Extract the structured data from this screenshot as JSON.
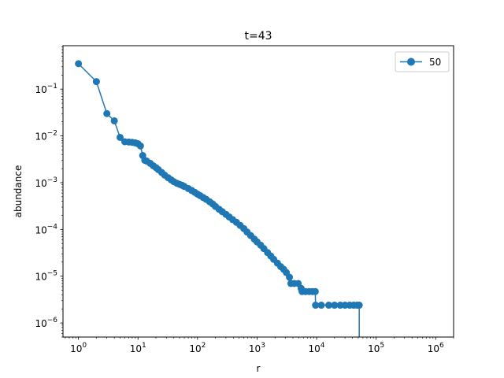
{
  "chart_data": {
    "type": "line",
    "title": "t=43",
    "xlabel": "r",
    "ylabel": "abundance",
    "xscale": "log",
    "yscale": "log",
    "xlim": [
      0.55,
      2000000
    ],
    "ylim": [
      5e-07,
      0.85
    ],
    "grid": false,
    "legend_position": "top-right",
    "x_ticks": [
      {
        "value": 1,
        "base": "10",
        "exp": "0"
      },
      {
        "value": 10,
        "base": "10",
        "exp": "1"
      },
      {
        "value": 100,
        "base": "10",
        "exp": "2"
      },
      {
        "value": 1000,
        "base": "10",
        "exp": "3"
      },
      {
        "value": 10000,
        "base": "10",
        "exp": "4"
      },
      {
        "value": 100000,
        "base": "10",
        "exp": "5"
      },
      {
        "value": 1000000,
        "base": "10",
        "exp": "6"
      }
    ],
    "y_ticks": [
      {
        "value": 0.1,
        "base": "10",
        "exp": "−1"
      },
      {
        "value": 0.01,
        "base": "10",
        "exp": "−2"
      },
      {
        "value": 0.001,
        "base": "10",
        "exp": "−3"
      },
      {
        "value": 0.0001,
        "base": "10",
        "exp": "−4"
      },
      {
        "value": 1e-05,
        "base": "10",
        "exp": "−5"
      },
      {
        "value": 1e-06,
        "base": "10",
        "exp": "−6"
      }
    ],
    "colors": {
      "series": "#1f77b4",
      "axis": "#000000",
      "legend_border": "#cccccc"
    },
    "series": [
      {
        "name": "50",
        "marker": "circle",
        "points": [
          [
            1,
            0.35
          ],
          [
            2,
            0.145
          ],
          [
            3,
            0.03
          ],
          [
            4,
            0.021
          ],
          [
            5,
            0.0093
          ],
          [
            6,
            0.0075
          ],
          [
            7,
            0.0074
          ],
          [
            8,
            0.0073
          ],
          [
            9,
            0.0071
          ],
          [
            10,
            0.0068
          ],
          [
            11,
            0.0061
          ],
          [
            12,
            0.0038
          ],
          [
            13,
            0.003
          ],
          [
            14,
            0.0029
          ],
          [
            16,
            0.0026
          ],
          [
            18,
            0.0023
          ],
          [
            20,
            0.0021
          ],
          [
            22,
            0.0019
          ],
          [
            25,
            0.00165
          ],
          [
            28,
            0.00145
          ],
          [
            32,
            0.00128
          ],
          [
            36,
            0.00115
          ],
          [
            40,
            0.00105
          ],
          [
            45,
            0.00097
          ],
          [
            50,
            0.00092
          ],
          [
            55,
            0.00088
          ],
          [
            60,
            0.00083
          ],
          [
            70,
            0.00075
          ],
          [
            80,
            0.00068
          ],
          [
            90,
            0.00062
          ],
          [
            100,
            0.00057
          ],
          [
            110,
            0.00053
          ],
          [
            125,
            0.00048
          ],
          [
            140,
            0.00044
          ],
          [
            160,
            0.00039
          ],
          [
            180,
            0.00035
          ],
          [
            200,
            0.00031
          ],
          [
            230,
            0.00027
          ],
          [
            260,
            0.00024
          ],
          [
            300,
            0.00021
          ],
          [
            340,
            0.000185
          ],
          [
            390,
            0.000162
          ],
          [
            450,
            0.000142
          ],
          [
            520,
            0.000122
          ],
          [
            600,
            0.000104
          ],
          [
            680,
            8.8e-05
          ],
          [
            780,
            7.4e-05
          ],
          [
            900,
            6.2e-05
          ],
          [
            1000,
            5.4e-05
          ],
          [
            1150,
            4.6e-05
          ],
          [
            1300,
            3.9e-05
          ],
          [
            1500,
            3.2e-05
          ],
          [
            1700,
            2.7e-05
          ],
          [
            1900,
            2.3e-05
          ],
          [
            2200,
            1.9e-05
          ],
          [
            2500,
            1.6e-05
          ],
          [
            2800,
            1.4e-05
          ],
          [
            3100,
            1.2e-05
          ],
          [
            3500,
            9.5e-06
          ],
          [
            3700,
            7e-06
          ],
          [
            4200,
            7e-06
          ],
          [
            4900,
            7e-06
          ],
          [
            5500,
            5.5e-06
          ],
          [
            5700,
            4.7e-06
          ],
          [
            6500,
            4.7e-06
          ],
          [
            7500,
            4.7e-06
          ],
          [
            8500,
            4.7e-06
          ],
          [
            9500,
            4.7e-06
          ],
          [
            9600,
            2.4e-06
          ],
          [
            12000,
            2.4e-06
          ],
          [
            16000,
            2.4e-06
          ],
          [
            20000,
            2.4e-06
          ],
          [
            25000,
            2.4e-06
          ],
          [
            30000,
            2.4e-06
          ],
          [
            36000,
            2.4e-06
          ],
          [
            42000,
            2.4e-06
          ],
          [
            48000,
            2.4e-06
          ],
          [
            52000,
            2.4e-06
          ],
          [
            52001,
            1e-07
          ]
        ]
      }
    ]
  }
}
